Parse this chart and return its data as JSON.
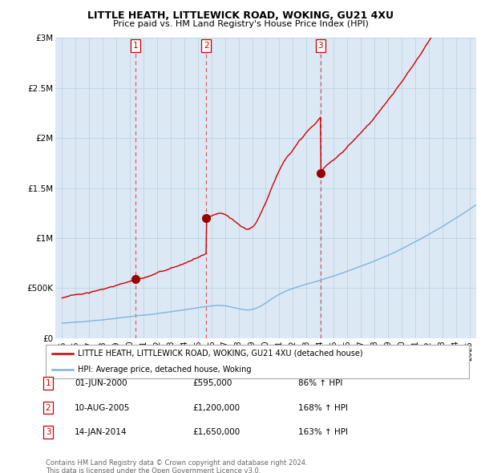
{
  "title": "LITTLE HEATH, LITTLEWICK ROAD, WOKING, GU21 4XU",
  "subtitle": "Price paid vs. HM Land Registry's House Price Index (HPI)",
  "legend_line1": "LITTLE HEATH, LITTLEWICK ROAD, WOKING, GU21 4XU (detached house)",
  "legend_line2": "HPI: Average price, detached house, Woking",
  "footer1": "Contains HM Land Registry data © Crown copyright and database right 2024.",
  "footer2": "This data is licensed under the Open Government Licence v3.0.",
  "transactions": [
    {
      "num": "1",
      "date": "01-JUN-2000",
      "price": "£595,000",
      "pct": "86% ↑ HPI"
    },
    {
      "num": "2",
      "date": "10-AUG-2005",
      "price": "£1,200,000",
      "pct": "168% ↑ HPI"
    },
    {
      "num": "3",
      "date": "14-JAN-2014",
      "price": "£1,650,000",
      "pct": "163% ↑ HPI"
    }
  ],
  "sale_years": [
    2000.42,
    2005.61,
    2014.04
  ],
  "sale_prices": [
    595000,
    1200000,
    1650000
  ],
  "hpi_color": "#7fb4d8",
  "price_color": "#cc0000",
  "marker_color": "#990000",
  "vline_color": "#dd4444",
  "grid_color": "#b8cfe0",
  "ylim": [
    0,
    3000000
  ],
  "yticks": [
    0,
    500000,
    1000000,
    1500000,
    2000000,
    2500000,
    3000000
  ],
  "ytick_labels": [
    "£0",
    "£500K",
    "£1M",
    "£1.5M",
    "£2M",
    "£2.5M",
    "£3M"
  ],
  "xlim_start": 1994.5,
  "xlim_end": 2025.5,
  "background_color": "#ffffff",
  "plot_bg_color": "#dce9f5"
}
